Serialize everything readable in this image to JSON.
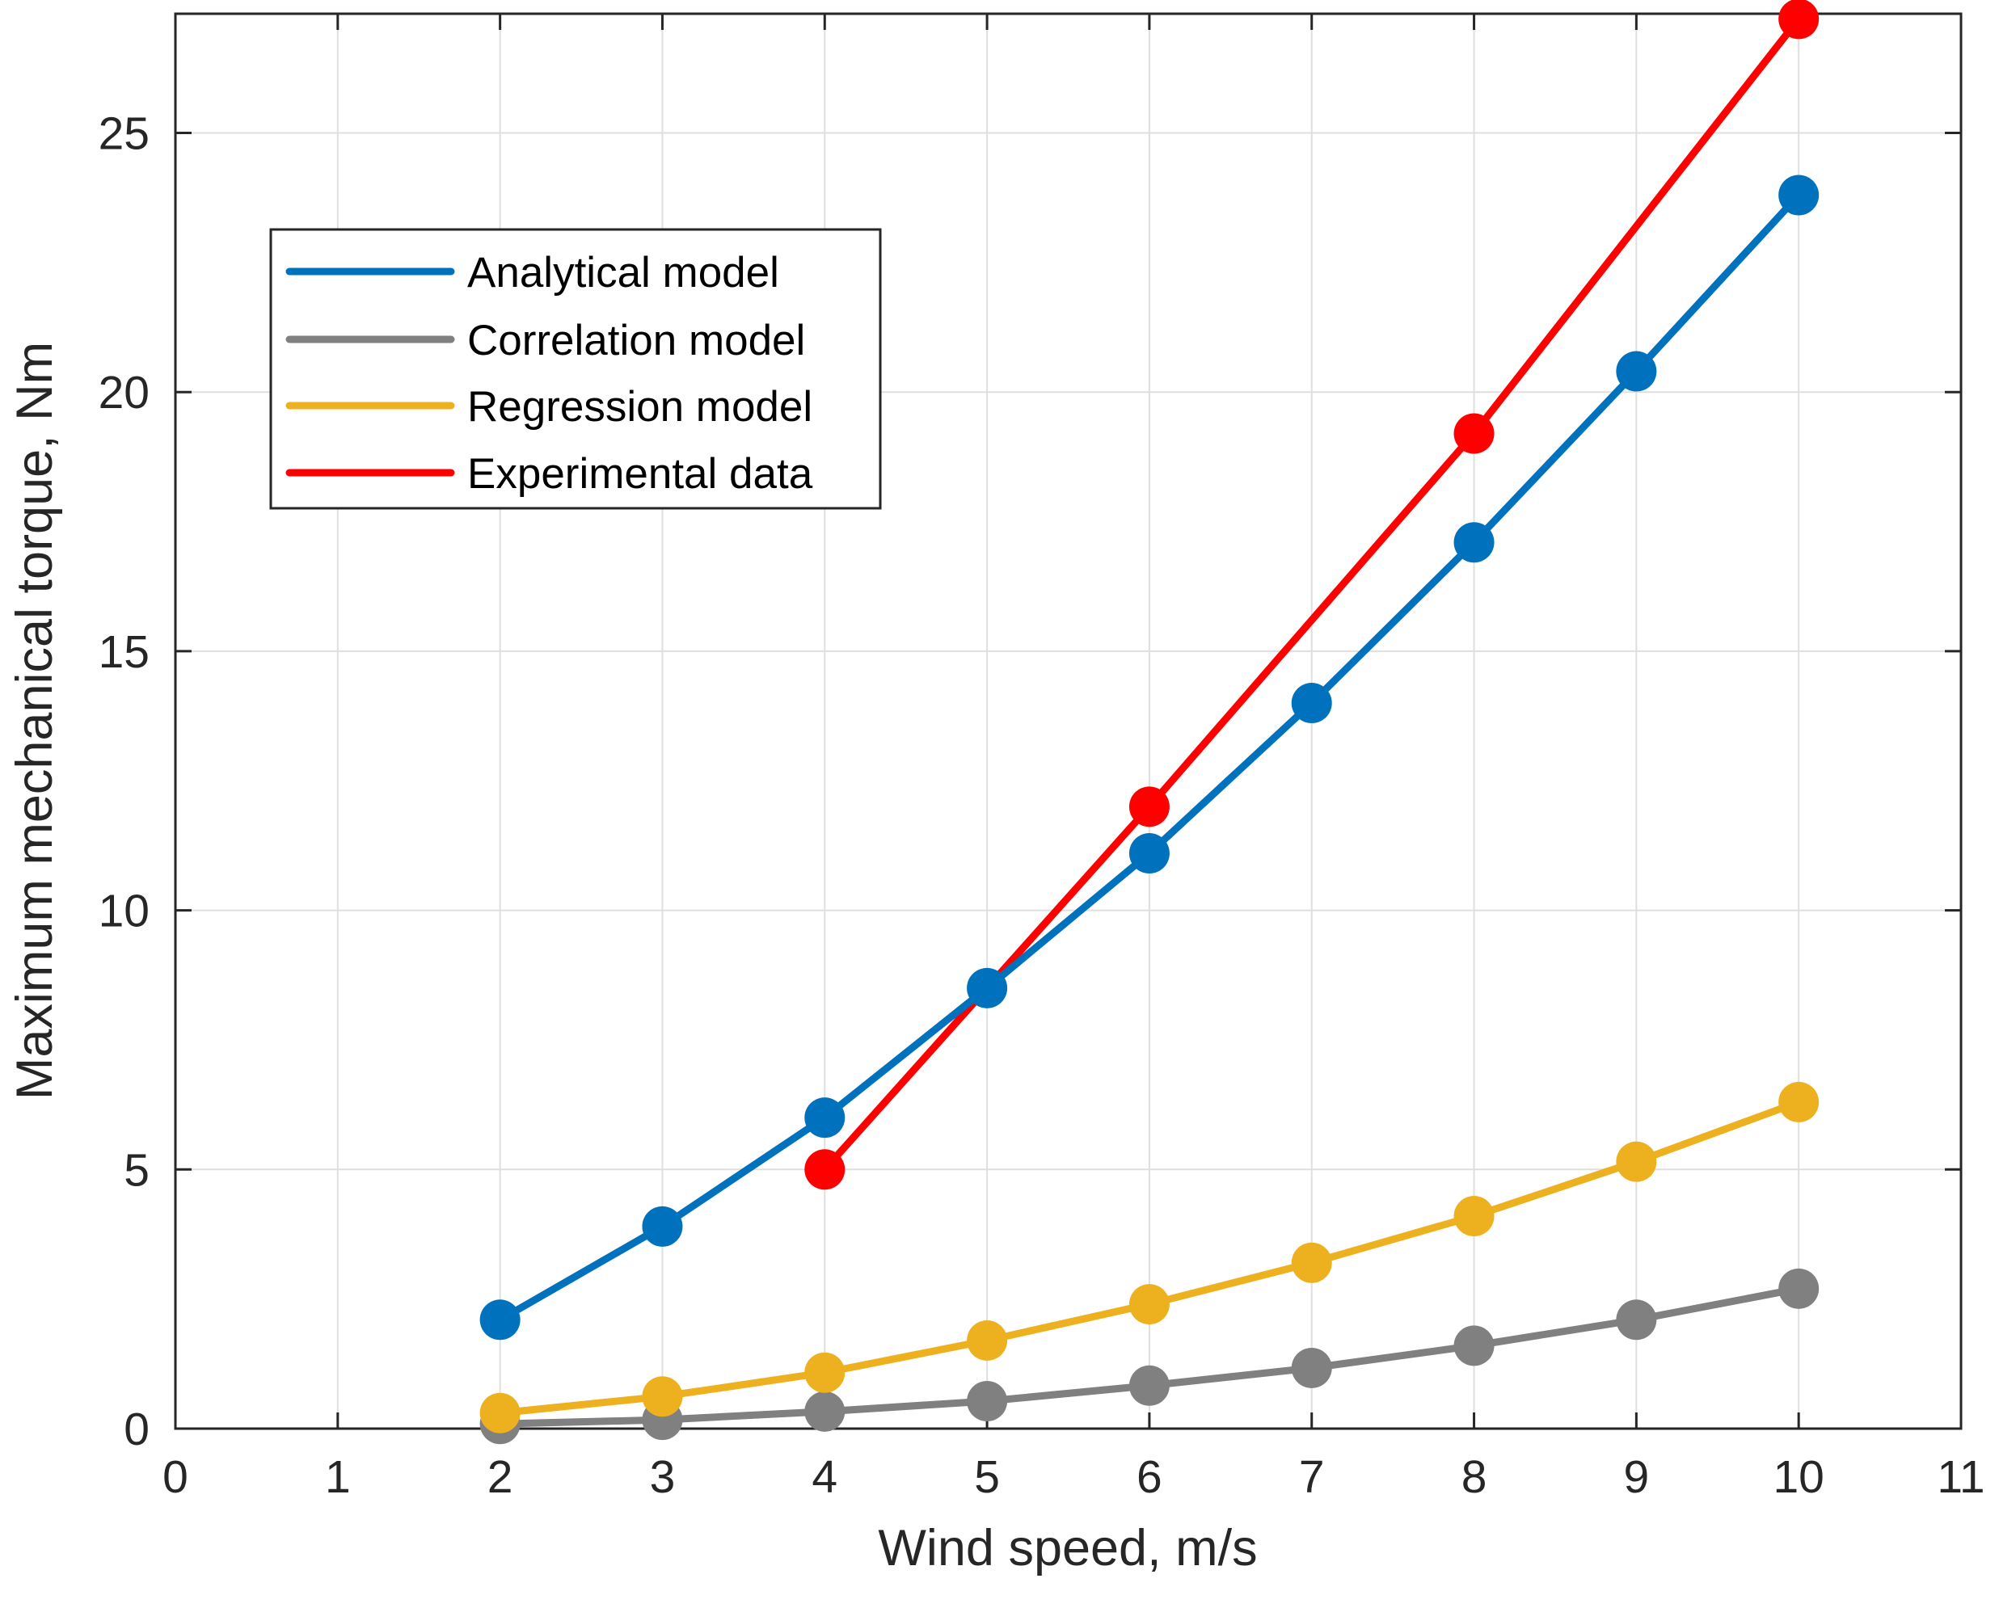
{
  "chart_data": {
    "type": "line",
    "title": "",
    "xlabel": "Wind speed, m/s",
    "ylabel": "Maximum mechanical torque, Nm",
    "xlim": [
      0,
      11
    ],
    "ylim": [
      0,
      27.3
    ],
    "xticks": [
      0,
      1,
      2,
      3,
      4,
      5,
      6,
      7,
      8,
      9,
      10,
      11
    ],
    "yticks": [
      0,
      5,
      10,
      15,
      20,
      25
    ],
    "grid": true,
    "legend_position": "upper-left",
    "series": [
      {
        "name": "Analytical model",
        "color": "#0072BD",
        "x": [
          2,
          3,
          4,
          5,
          6,
          7,
          8,
          9,
          10
        ],
        "values": [
          2.1,
          3.9,
          6.0,
          8.5,
          11.1,
          14.0,
          17.1,
          20.4,
          23.8
        ]
      },
      {
        "name": "Correlation model",
        "color": "#808080",
        "x": [
          2,
          3,
          4,
          5,
          6,
          7,
          8,
          9,
          10
        ],
        "values": [
          0.09,
          0.17,
          0.33,
          0.53,
          0.83,
          1.17,
          1.6,
          2.1,
          2.7
        ]
      },
      {
        "name": "Regression model",
        "color": "#EDB120",
        "x": [
          2,
          3,
          4,
          5,
          6,
          7,
          8,
          9,
          10
        ],
        "values": [
          0.3,
          0.62,
          1.08,
          1.7,
          2.4,
          3.2,
          4.1,
          5.15,
          6.3
        ]
      },
      {
        "name": "Experimental data",
        "color": "#FF0000",
        "x": [
          4,
          6,
          8,
          10
        ],
        "values": [
          5.0,
          12.0,
          19.2,
          27.2
        ]
      }
    ]
  }
}
